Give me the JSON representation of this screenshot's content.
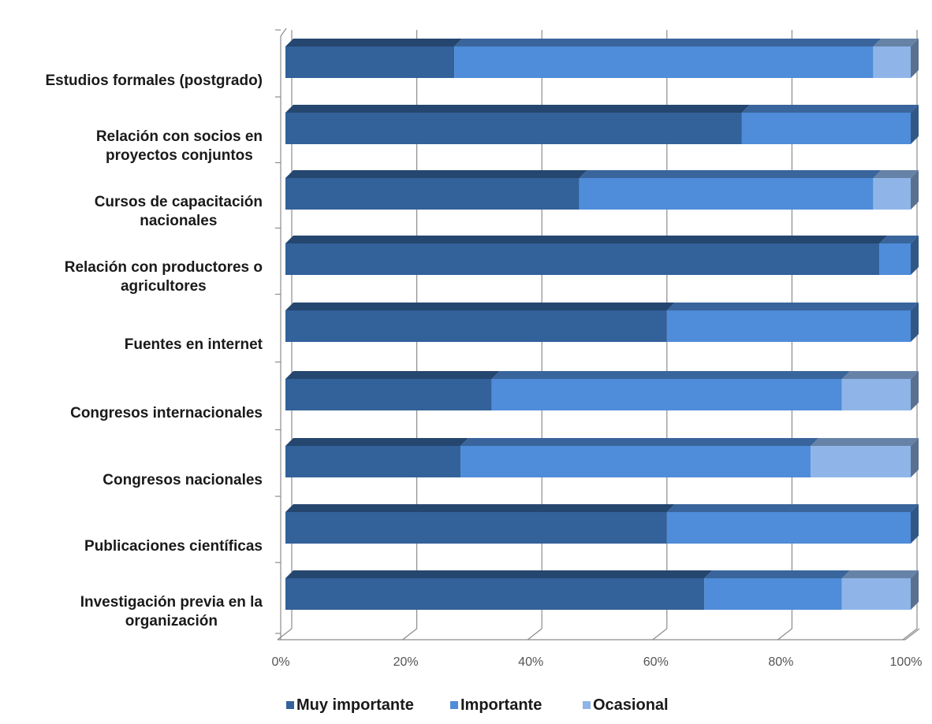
{
  "chart_data": {
    "type": "bar",
    "orientation": "horizontal",
    "stacked": "percent",
    "three_d": true,
    "grid": true,
    "legend_position": "bottom",
    "categories": [
      [
        "Estudios formales (postgrado)"
      ],
      [
        "Relación con socios en",
        "proyectos conjuntos"
      ],
      [
        "Cursos de capacitación",
        "nacionales"
      ],
      [
        "Relación con productores o",
        "agricultores"
      ],
      [
        "Fuentes en internet"
      ],
      [
        "Congresos internacionales"
      ],
      [
        "Congresos nacionales"
      ],
      [
        "Publicaciones científicas"
      ],
      [
        "Investigación previa en la",
        "organización"
      ]
    ],
    "series": [
      {
        "name": "Muy importante",
        "color": "#33619a",
        "values": [
          27,
          73,
          47,
          95,
          61,
          33,
          28,
          61,
          67
        ]
      },
      {
        "name": "Importante",
        "color": "#4f8cd9",
        "values": [
          67,
          27,
          47,
          5,
          39,
          56,
          56,
          39,
          22
        ]
      },
      {
        "name": "Ocasional",
        "color": "#8fb5e8",
        "values": [
          6,
          0,
          6,
          0,
          0,
          11,
          16,
          0,
          11
        ]
      }
    ],
    "x_ticks": [
      "0%",
      "20%",
      "40%",
      "60%",
      "80%",
      "100%"
    ],
    "xlim": [
      0,
      100
    ]
  }
}
